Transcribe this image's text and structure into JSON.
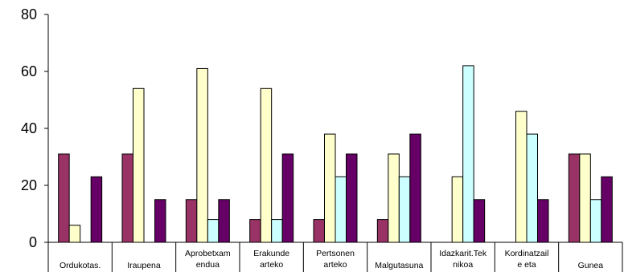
{
  "chart_data": {
    "type": "bar",
    "categories": [
      [
        "Ordukotas."
      ],
      [
        "Iraupena"
      ],
      [
        "Aprobetxam",
        "endua"
      ],
      [
        "Erakunde",
        "arteko"
      ],
      [
        "Pertsonen",
        "arteko"
      ],
      [
        "Malgutasuna"
      ],
      [
        "Idazkarit.Tek",
        "nikoa"
      ],
      [
        "Kordinatzail",
        "e eta"
      ],
      [
        "Gunea"
      ]
    ],
    "series": [
      {
        "values": [
          31,
          31,
          15,
          8,
          8,
          8,
          0,
          0,
          31
        ],
        "color": "#993366"
      },
      {
        "values": [
          6,
          54,
          61,
          54,
          38,
          31,
          23,
          46,
          31
        ],
        "color": "#ffffcc"
      },
      {
        "values": [
          0,
          0,
          8,
          8,
          23,
          23,
          62,
          38,
          15
        ],
        "color": "#ccffff"
      },
      {
        "values": [
          23,
          15,
          15,
          31,
          31,
          38,
          15,
          15,
          23
        ],
        "color": "#660066"
      }
    ],
    "ylim": [
      0,
      80
    ],
    "yticks": [
      0,
      20,
      40,
      60,
      80
    ],
    "grid": false,
    "legend": "none"
  }
}
